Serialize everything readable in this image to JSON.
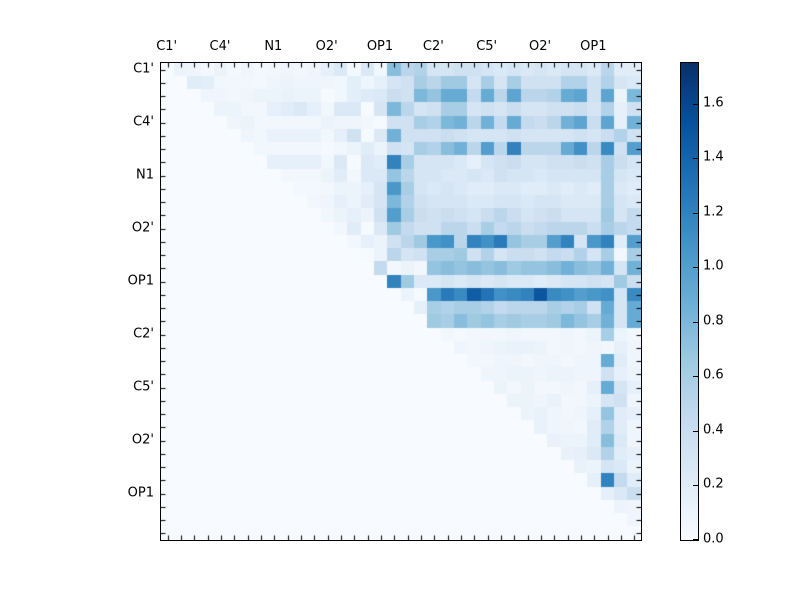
{
  "figure": {
    "background": "#ffffff"
  },
  "chart_data": {
    "type": "heatmap",
    "title": "",
    "matrix_size": 36,
    "x_tick_labels": [
      "C1'",
      "C4'",
      "N1",
      "O2'",
      "OP1",
      "C2'",
      "C5'",
      "O2'",
      "OP1"
    ],
    "y_tick_labels": [
      "C1'",
      "C4'",
      "N1",
      "O2'",
      "OP1",
      "C2'",
      "C5'",
      "O2'",
      "OP1"
    ],
    "tick_label_every": 4,
    "minor_tick_every": 1,
    "vmin": 0.0,
    "vmax": 1.75,
    "colormap": "Blues",
    "colormap_stops": [
      "#f7fbff",
      "#deebf7",
      "#c6dbef",
      "#9ecae1",
      "#6baed6",
      "#4292c6",
      "#2171b5",
      "#08519c",
      "#08306b"
    ],
    "legend_position": "right-colorbar",
    "colorbar_tick_labels": [
      "0.0",
      "0.2",
      "0.4",
      "0.6",
      "0.8",
      "1.0",
      "1.2",
      "1.4",
      "1.6"
    ],
    "colorbar_tick_values": [
      0.0,
      0.2,
      0.4,
      0.6,
      0.8,
      1.0,
      1.2,
      1.4,
      1.6
    ],
    "grid": false,
    "triangular": "upper",
    "values": [
      [
        0,
        0.1,
        0.08,
        0.04,
        0.1,
        0.04,
        0.08,
        0.04,
        0.06,
        0.08,
        0.06,
        0.08,
        0.15,
        0.25,
        0.04,
        0.25,
        0.06,
        0.75,
        0.5,
        0.55,
        0.3,
        0.3,
        0.35,
        0.35,
        0.3,
        0.25,
        0.3,
        0.25,
        0.3,
        0.25,
        0.3,
        0.3,
        0.25,
        0.5,
        0.2,
        0.2
      ],
      [
        0,
        0,
        0.2,
        0.18,
        0.06,
        0.05,
        0.06,
        0.04,
        0.08,
        0.1,
        0.08,
        0.08,
        0.08,
        0.06,
        0.18,
        0.08,
        0.15,
        0.3,
        0.35,
        0.6,
        0.5,
        0.65,
        0.65,
        0.3,
        0.6,
        0.3,
        0.6,
        0.35,
        0.35,
        0.35,
        0.55,
        0.55,
        0.35,
        0.55,
        0.3,
        0.25
      ],
      [
        0,
        0,
        0,
        0.08,
        0.08,
        0.05,
        0.08,
        0.1,
        0.1,
        0.12,
        0.1,
        0.1,
        0.02,
        0.06,
        0.18,
        0.22,
        0.25,
        0.4,
        0.35,
        0.8,
        0.7,
        0.9,
        0.9,
        0.45,
        0.9,
        0.5,
        0.95,
        0.5,
        0.5,
        0.55,
        0.9,
        0.95,
        0.35,
        0.95,
        0.1,
        0.8
      ],
      [
        0,
        0,
        0,
        0,
        0.1,
        0.1,
        0.06,
        0.05,
        0.15,
        0.2,
        0.25,
        0.15,
        0.06,
        0.25,
        0.25,
        0.02,
        0.3,
        0.8,
        0.5,
        0.3,
        0.35,
        0.6,
        0.6,
        0.3,
        0.35,
        0.3,
        0.4,
        0.3,
        0.3,
        0.35,
        0.35,
        0.4,
        0.3,
        0.55,
        0.15,
        0.35
      ],
      [
        0,
        0,
        0,
        0,
        0,
        0.08,
        0.1,
        0.05,
        0.05,
        0.06,
        0.05,
        0.06,
        0.1,
        0.08,
        0.08,
        0.06,
        0.02,
        0.35,
        0.35,
        0.6,
        0.55,
        0.8,
        0.85,
        0.5,
        0.85,
        0.45,
        0.9,
        0.45,
        0.4,
        0.5,
        0.85,
        0.95,
        0.4,
        0.95,
        0.15,
        0.85
      ],
      [
        0,
        0,
        0,
        0,
        0,
        0,
        0.08,
        0.06,
        0.12,
        0.12,
        0.12,
        0.12,
        0.06,
        0.15,
        0.35,
        0.02,
        0.25,
        0.85,
        0.35,
        0.35,
        0.35,
        0.4,
        0.35,
        0.3,
        0.3,
        0.3,
        0.35,
        0.3,
        0.3,
        0.3,
        0.3,
        0.35,
        0.3,
        0.4,
        0.55,
        0.35
      ],
      [
        0,
        0,
        0,
        0,
        0,
        0,
        0,
        0.06,
        0.05,
        0.05,
        0.05,
        0.05,
        0.03,
        0.06,
        0.1,
        0.2,
        0.1,
        0.35,
        0.3,
        0.6,
        0.55,
        0.75,
        0.85,
        0.5,
        1.0,
        0.5,
        1.2,
        0.5,
        0.5,
        0.5,
        0.9,
        1.1,
        0.5,
        1.15,
        0.35,
        1.0
      ],
      [
        0,
        0,
        0,
        0,
        0,
        0,
        0,
        0,
        0.15,
        0.15,
        0.15,
        0.15,
        0.06,
        0.25,
        0.02,
        0.25,
        0.2,
        1.2,
        0.6,
        0.3,
        0.3,
        0.3,
        0.25,
        0.15,
        0.3,
        0.35,
        0.4,
        0.3,
        0.3,
        0.35,
        0.35,
        0.4,
        0.35,
        0.6,
        0.4,
        0.3
      ],
      [
        0,
        0,
        0,
        0,
        0,
        0,
        0,
        0,
        0,
        0.05,
        0.05,
        0.05,
        0.1,
        0.2,
        0.05,
        0.25,
        0.25,
        0.7,
        0.5,
        0.3,
        0.3,
        0.25,
        0.25,
        0.3,
        0.25,
        0.35,
        0.3,
        0.3,
        0.25,
        0.3,
        0.3,
        0.3,
        0.3,
        0.6,
        0.3,
        0.25
      ],
      [
        0,
        0,
        0,
        0,
        0,
        0,
        0,
        0,
        0,
        0,
        0.04,
        0.04,
        0.05,
        0.1,
        0.1,
        0.15,
        0.3,
        1.05,
        0.6,
        0.3,
        0.25,
        0.3,
        0.25,
        0.2,
        0.2,
        0.25,
        0.25,
        0.2,
        0.2,
        0.25,
        0.2,
        0.25,
        0.2,
        0.6,
        0.25,
        0.2
      ],
      [
        0,
        0,
        0,
        0,
        0,
        0,
        0,
        0,
        0,
        0,
        0,
        0.05,
        0.08,
        0.15,
        0.1,
        0.2,
        0.3,
        0.8,
        0.55,
        0.35,
        0.3,
        0.3,
        0.3,
        0.25,
        0.25,
        0.3,
        0.3,
        0.25,
        0.3,
        0.3,
        0.25,
        0.25,
        0.25,
        0.6,
        0.3,
        0.25
      ],
      [
        0,
        0,
        0,
        0,
        0,
        0,
        0,
        0,
        0,
        0,
        0,
        0,
        0.06,
        0.1,
        0.15,
        0.1,
        0.35,
        1.0,
        0.6,
        0.4,
        0.35,
        0.4,
        0.35,
        0.3,
        0.4,
        0.5,
        0.4,
        0.3,
        0.35,
        0.4,
        0.3,
        0.3,
        0.3,
        0.65,
        0.3,
        0.45
      ],
      [
        0,
        0,
        0,
        0,
        0,
        0,
        0,
        0,
        0,
        0,
        0,
        0,
        0,
        0.05,
        0.2,
        0.02,
        0.25,
        0.65,
        0.45,
        0.35,
        0.35,
        0.5,
        0.5,
        0.4,
        0.6,
        0.45,
        0.5,
        0.4,
        0.45,
        0.5,
        0.5,
        0.5,
        0.4,
        0.6,
        0.5,
        0.45
      ],
      [
        0,
        0,
        0,
        0,
        0,
        0,
        0,
        0,
        0,
        0,
        0,
        0,
        0,
        0,
        0.05,
        0.15,
        0.1,
        0.35,
        0.5,
        0.65,
        1.05,
        1.1,
        0.5,
        1.2,
        1.1,
        1.25,
        0.7,
        0.6,
        0.6,
        1.0,
        1.2,
        0.3,
        1.05,
        1.2,
        0.2,
        1.0
      ],
      [
        0,
        0,
        0,
        0,
        0,
        0,
        0,
        0,
        0,
        0,
        0,
        0,
        0,
        0,
        0,
        0.02,
        0.1,
        0.5,
        0.3,
        0.35,
        0.6,
        0.6,
        0.65,
        0.35,
        0.55,
        0.3,
        0.4,
        0.4,
        0.35,
        0.45,
        0.4,
        0.55,
        0.3,
        0.6,
        0.05,
        0.6
      ],
      [
        0,
        0,
        0,
        0,
        0,
        0,
        0,
        0,
        0,
        0,
        0,
        0,
        0,
        0,
        0,
        0,
        0.45,
        0.05,
        0.1,
        0.05,
        0.7,
        0.75,
        0.7,
        0.75,
        0.7,
        0.75,
        0.65,
        0.7,
        0.7,
        0.75,
        0.85,
        0.75,
        0.7,
        0.85,
        0.3,
        0.85
      ],
      [
        0,
        0,
        0,
        0,
        0,
        0,
        0,
        0,
        0,
        0,
        0,
        0,
        0,
        0,
        0,
        0,
        0,
        1.2,
        0.65,
        0.25,
        0.25,
        0.3,
        0.25,
        0.3,
        0.25,
        0.3,
        0.25,
        0.25,
        0.2,
        0.25,
        0.3,
        0.3,
        0.35,
        0.3,
        0.65,
        0.4
      ],
      [
        0,
        0,
        0,
        0,
        0,
        0,
        0,
        0,
        0,
        0,
        0,
        0,
        0,
        0,
        0,
        0,
        0,
        0,
        0.1,
        0.02,
        1.05,
        1.25,
        1.15,
        1.45,
        1.3,
        1.1,
        1.15,
        1.2,
        1.5,
        1.15,
        1.1,
        1.0,
        1.05,
        1.1,
        0.3,
        1.15
      ],
      [
        0,
        0,
        0,
        0,
        0,
        0,
        0,
        0,
        0,
        0,
        0,
        0,
        0,
        0,
        0,
        0,
        0,
        0,
        0,
        0.15,
        0.6,
        0.55,
        0.6,
        0.6,
        0.55,
        0.45,
        0.5,
        0.5,
        0.5,
        0.6,
        0.55,
        0.6,
        0.35,
        0.9,
        0.3,
        0.9
      ],
      [
        0,
        0,
        0,
        0,
        0,
        0,
        0,
        0,
        0,
        0,
        0,
        0,
        0,
        0,
        0,
        0,
        0,
        0,
        0,
        0,
        0.65,
        0.6,
        0.75,
        0.65,
        0.7,
        0.6,
        0.65,
        0.6,
        0.6,
        0.65,
        0.8,
        0.7,
        0.6,
        0.85,
        0.3,
        0.9
      ],
      [
        0,
        0,
        0,
        0,
        0,
        0,
        0,
        0,
        0,
        0,
        0,
        0,
        0,
        0,
        0,
        0,
        0,
        0,
        0,
        0,
        0,
        0.05,
        0.03,
        0.05,
        0.05,
        0.05,
        0.08,
        0.05,
        0.05,
        0.05,
        0.08,
        0.05,
        0.1,
        0.6,
        0.1,
        0.05
      ],
      [
        0,
        0,
        0,
        0,
        0,
        0,
        0,
        0,
        0,
        0,
        0,
        0,
        0,
        0,
        0,
        0,
        0,
        0,
        0,
        0,
        0,
        0,
        0.08,
        0.05,
        0.08,
        0.1,
        0.12,
        0.12,
        0.1,
        0.05,
        0.08,
        0.05,
        0.08,
        0.05,
        0.15,
        0.08
      ],
      [
        0,
        0,
        0,
        0,
        0,
        0,
        0,
        0,
        0,
        0,
        0,
        0,
        0,
        0,
        0,
        0,
        0,
        0,
        0,
        0,
        0,
        0,
        0,
        0.05,
        0.05,
        0.08,
        0.08,
        0.05,
        0.08,
        0.08,
        0.05,
        0.08,
        0.08,
        0.9,
        0.2,
        0.08
      ],
      [
        0,
        0,
        0,
        0,
        0,
        0,
        0,
        0,
        0,
        0,
        0,
        0,
        0,
        0,
        0,
        0,
        0,
        0,
        0,
        0,
        0,
        0,
        0,
        0,
        0.08,
        0.08,
        0.1,
        0.1,
        0.08,
        0.1,
        0.1,
        0.08,
        0.08,
        0.35,
        0.15,
        0.1
      ],
      [
        0,
        0,
        0,
        0,
        0,
        0,
        0,
        0,
        0,
        0,
        0,
        0,
        0,
        0,
        0,
        0,
        0,
        0,
        0,
        0,
        0,
        0,
        0,
        0,
        0,
        0.1,
        0.05,
        0.1,
        0.05,
        0.05,
        0.08,
        0.05,
        0.15,
        0.9,
        0.3,
        0.15
      ],
      [
        0,
        0,
        0,
        0,
        0,
        0,
        0,
        0,
        0,
        0,
        0,
        0,
        0,
        0,
        0,
        0,
        0,
        0,
        0,
        0,
        0,
        0,
        0,
        0,
        0,
        0,
        0.1,
        0.1,
        0.08,
        0.12,
        0.05,
        0.05,
        0.1,
        0.3,
        0.35,
        0.08
      ],
      [
        0,
        0,
        0,
        0,
        0,
        0,
        0,
        0,
        0,
        0,
        0,
        0,
        0,
        0,
        0,
        0,
        0,
        0,
        0,
        0,
        0,
        0,
        0,
        0,
        0,
        0,
        0,
        0.1,
        0.12,
        0.08,
        0.05,
        0.08,
        0.15,
        0.7,
        0.2,
        0.15
      ],
      [
        0,
        0,
        0,
        0,
        0,
        0,
        0,
        0,
        0,
        0,
        0,
        0,
        0,
        0,
        0,
        0,
        0,
        0,
        0,
        0,
        0,
        0,
        0,
        0,
        0,
        0,
        0,
        0,
        0.12,
        0.08,
        0.08,
        0.05,
        0.2,
        0.55,
        0.2,
        0.08
      ],
      [
        0,
        0,
        0,
        0,
        0,
        0,
        0,
        0,
        0,
        0,
        0,
        0,
        0,
        0,
        0,
        0,
        0,
        0,
        0,
        0,
        0,
        0,
        0,
        0,
        0,
        0,
        0,
        0,
        0,
        0.12,
        0.1,
        0.1,
        0.2,
        0.75,
        0.25,
        0.08
      ],
      [
        0,
        0,
        0,
        0,
        0,
        0,
        0,
        0,
        0,
        0,
        0,
        0,
        0,
        0,
        0,
        0,
        0,
        0,
        0,
        0,
        0,
        0,
        0,
        0,
        0,
        0,
        0,
        0,
        0,
        0,
        0.12,
        0.15,
        0.25,
        0.55,
        0.2,
        0.15
      ],
      [
        0,
        0,
        0,
        0,
        0,
        0,
        0,
        0,
        0,
        0,
        0,
        0,
        0,
        0,
        0,
        0,
        0,
        0,
        0,
        0,
        0,
        0,
        0,
        0,
        0,
        0,
        0,
        0,
        0,
        0,
        0,
        0.12,
        0.1,
        0.3,
        0.25,
        0.1
      ],
      [
        0,
        0,
        0,
        0,
        0,
        0,
        0,
        0,
        0,
        0,
        0,
        0,
        0,
        0,
        0,
        0,
        0,
        0,
        0,
        0,
        0,
        0,
        0,
        0,
        0,
        0,
        0,
        0,
        0,
        0,
        0,
        0,
        0.15,
        1.2,
        0.45,
        0.2
      ],
      [
        0,
        0,
        0,
        0,
        0,
        0,
        0,
        0,
        0,
        0,
        0,
        0,
        0,
        0,
        0,
        0,
        0,
        0,
        0,
        0,
        0,
        0,
        0,
        0,
        0,
        0,
        0,
        0,
        0,
        0,
        0,
        0,
        0,
        0.15,
        0.25,
        0.4
      ],
      [
        0,
        0,
        0,
        0,
        0,
        0,
        0,
        0,
        0,
        0,
        0,
        0,
        0,
        0,
        0,
        0,
        0,
        0,
        0,
        0,
        0,
        0,
        0,
        0,
        0,
        0,
        0,
        0,
        0,
        0,
        0,
        0,
        0,
        0,
        0.1,
        0.08
      ],
      [
        0,
        0,
        0,
        0,
        0,
        0,
        0,
        0,
        0,
        0,
        0,
        0,
        0,
        0,
        0,
        0,
        0,
        0,
        0,
        0,
        0,
        0,
        0,
        0,
        0,
        0,
        0,
        0,
        0,
        0,
        0,
        0,
        0,
        0,
        0,
        0.08
      ],
      [
        0,
        0,
        0,
        0,
        0,
        0,
        0,
        0,
        0,
        0,
        0,
        0,
        0,
        0,
        0,
        0,
        0,
        0,
        0,
        0,
        0,
        0,
        0,
        0,
        0,
        0,
        0,
        0,
        0,
        0,
        0,
        0,
        0,
        0,
        0,
        0
      ]
    ]
  }
}
